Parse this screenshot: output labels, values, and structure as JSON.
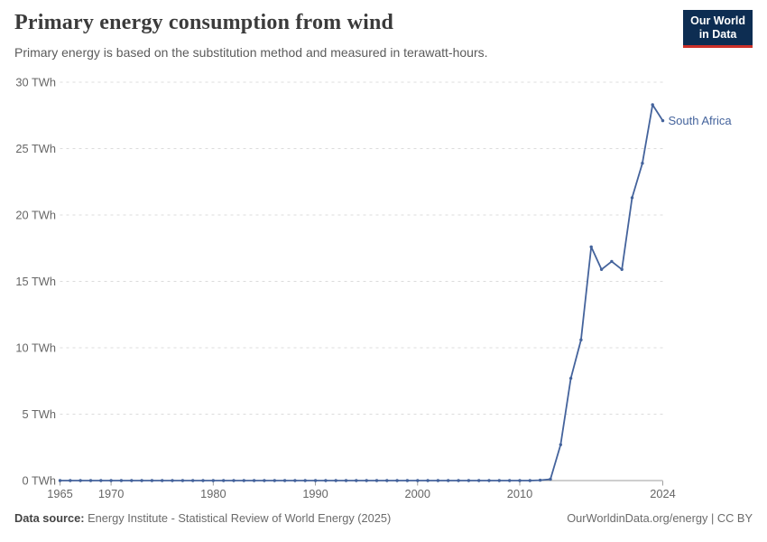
{
  "header": {
    "title": "Primary energy consumption from wind",
    "subtitle": "Primary energy is based on the substitution method and measured in terawatt-hours.",
    "logo": {
      "line1": "Our World",
      "line2": "in Data",
      "bg_color": "#0d2d52",
      "accent_color": "#cc3029"
    }
  },
  "chart_data": {
    "type": "line",
    "title": "Primary energy consumption from wind",
    "subtitle": "Primary energy is based on the substitution method and measured in terawatt-hours.",
    "xlabel": "",
    "ylabel": "TWh",
    "ylim": [
      0,
      30
    ],
    "xlim": [
      1965,
      2024
    ],
    "grid": "horizontal-dashed",
    "legend_position": "end-of-line-label",
    "yticks": [
      {
        "value": 0,
        "label": "0 TWh"
      },
      {
        "value": 5,
        "label": "5 TWh"
      },
      {
        "value": 10,
        "label": "10 TWh"
      },
      {
        "value": 15,
        "label": "15 TWh"
      },
      {
        "value": 20,
        "label": "20 TWh"
      },
      {
        "value": 25,
        "label": "25 TWh"
      },
      {
        "value": 30,
        "label": "30 TWh"
      }
    ],
    "xticks": [
      {
        "value": 1965,
        "label": "1965"
      },
      {
        "value": 1970,
        "label": "1970"
      },
      {
        "value": 1980,
        "label": "1980"
      },
      {
        "value": 1990,
        "label": "1990"
      },
      {
        "value": 2000,
        "label": "2000"
      },
      {
        "value": 2010,
        "label": "2010"
      },
      {
        "value": 2024,
        "label": "2024"
      }
    ],
    "style": {
      "grid_color": "#dcdcdc",
      "axis_color": "#9e9e9e",
      "tick_text_color": "#666666"
    },
    "series": [
      {
        "name": "South Africa",
        "color": "#44639c",
        "start_year": 1965,
        "values": [
          0,
          0,
          0,
          0,
          0,
          0,
          0,
          0,
          0,
          0,
          0,
          0,
          0,
          0,
          0,
          0,
          0,
          0,
          0,
          0,
          0,
          0,
          0,
          0,
          0,
          0,
          0,
          0,
          0,
          0,
          0,
          0,
          0,
          0,
          0,
          0,
          0,
          0,
          0,
          0,
          0,
          0,
          0,
          0,
          0,
          0,
          0,
          0.03,
          0.1,
          2.7,
          7.7,
          10.6,
          17.6,
          15.9,
          16.5,
          15.9,
          21.3,
          23.9,
          28.3,
          27.1
        ]
      }
    ]
  },
  "footer": {
    "source_label": "Data source:",
    "source_text": "Energy Institute - Statistical Review of World Energy (2025)",
    "credit": "OurWorldinData.org/energy | CC BY"
  }
}
